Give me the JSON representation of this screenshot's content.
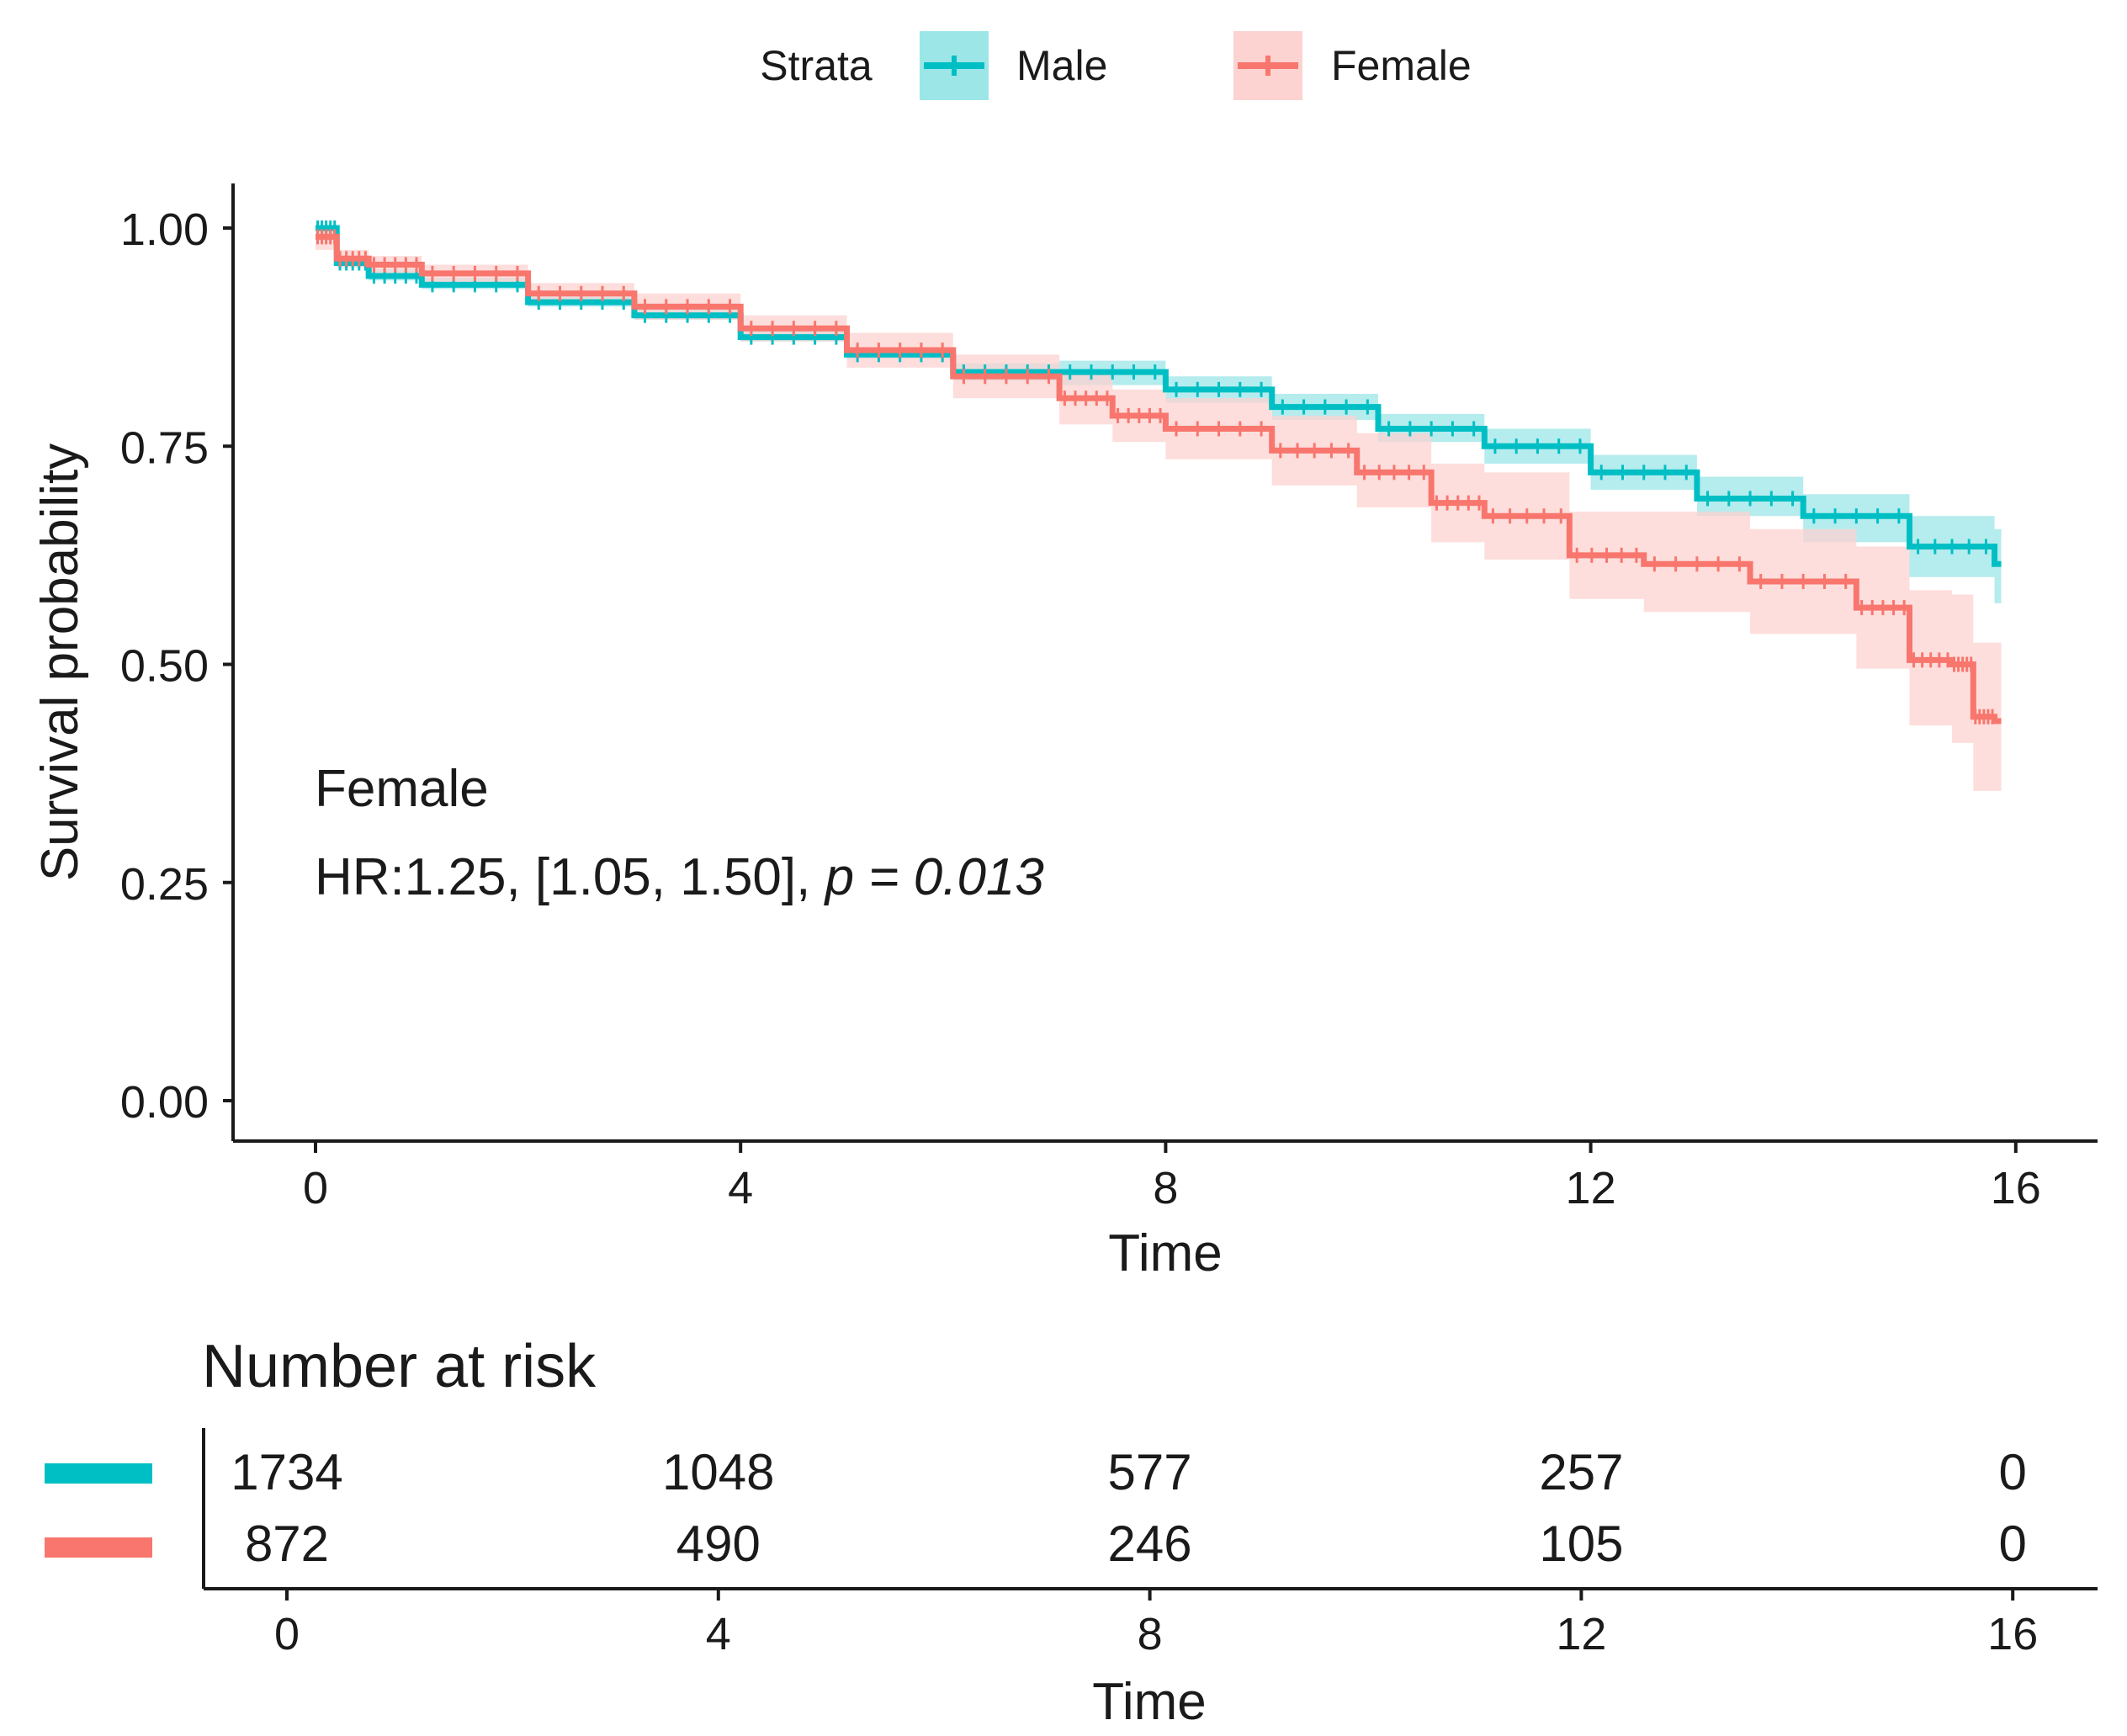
{
  "colors": {
    "male": "#00BFC4",
    "male_band": "#9CE6E8",
    "female": "#F8766D",
    "female_band": "#FCD3D0",
    "axis": "#1a1a1a"
  },
  "legend": {
    "title": "Strata",
    "entries": [
      {
        "label": "Male",
        "color": "#00BFC4",
        "band": "#9CE6E8"
      },
      {
        "label": "Female",
        "color": "#F8766D",
        "band": "#FCD3D0"
      }
    ]
  },
  "annotation": {
    "line1": "Female",
    "hr_text": "HR:1.25, [1.05, 1.50], ",
    "p_label": "p",
    "p_value": " = 0.013"
  },
  "risk_table": {
    "title": "Number at risk",
    "xlabel": "Time",
    "times": [
      0,
      4,
      8,
      12,
      16
    ],
    "rows": [
      {
        "name": "Male",
        "color": "#00BFC4",
        "values": [
          "1734",
          "1048",
          "577",
          "257",
          "0"
        ]
      },
      {
        "name": "Female",
        "color": "#F8766D",
        "values": [
          "872",
          "490",
          "246",
          "105",
          "0"
        ]
      }
    ]
  },
  "chart_data": {
    "type": "line",
    "title": "",
    "xlabel": "Time",
    "ylabel": "Survival probability",
    "xlim": [
      -0.8,
      16.8
    ],
    "ylim": [
      -0.05,
      1.05
    ],
    "xticks": [
      0,
      4,
      8,
      12,
      16
    ],
    "yticks": [
      0.0,
      0.25,
      0.5,
      0.75,
      1.0
    ],
    "ytick_labels": [
      "0.00",
      "0.25",
      "0.50",
      "0.75",
      "1.00"
    ],
    "xtick_labels": [
      "0",
      "4",
      "8",
      "12",
      "16"
    ],
    "series": [
      {
        "name": "Male",
        "x": [
          0,
          0.2,
          0.5,
          1,
          2,
          3,
          4,
          5,
          6,
          7,
          8,
          9,
          10,
          11,
          12,
          13,
          14,
          15,
          15.8
        ],
        "values": [
          1.0,
          0.96,
          0.945,
          0.935,
          0.915,
          0.9,
          0.875,
          0.855,
          0.835,
          0.835,
          0.815,
          0.795,
          0.77,
          0.75,
          0.72,
          0.69,
          0.67,
          0.635,
          0.615
        ],
        "lower": [
          0.985,
          0.955,
          0.94,
          0.93,
          0.91,
          0.895,
          0.87,
          0.85,
          0.825,
          0.82,
          0.8,
          0.78,
          0.755,
          0.73,
          0.7,
          0.67,
          0.64,
          0.6,
          0.57
        ],
        "upper": [
          1.0,
          0.968,
          0.953,
          0.943,
          0.922,
          0.907,
          0.882,
          0.862,
          0.845,
          0.848,
          0.83,
          0.81,
          0.787,
          0.77,
          0.74,
          0.715,
          0.695,
          0.67,
          0.655
        ]
      },
      {
        "name": "Female",
        "x": [
          0,
          0.2,
          0.5,
          1,
          2,
          3,
          4,
          5,
          6,
          7,
          7.5,
          8,
          9,
          9.8,
          10.5,
          11,
          11.8,
          12.5,
          13.5,
          14.5,
          15,
          15.4,
          15.6,
          15.8
        ],
        "values": [
          0.99,
          0.965,
          0.958,
          0.948,
          0.925,
          0.91,
          0.885,
          0.86,
          0.83,
          0.805,
          0.785,
          0.77,
          0.745,
          0.72,
          0.685,
          0.67,
          0.625,
          0.615,
          0.595,
          0.565,
          0.505,
          0.5,
          0.44,
          0.435
        ],
        "lower": [
          0.975,
          0.955,
          0.948,
          0.938,
          0.913,
          0.895,
          0.87,
          0.84,
          0.805,
          0.775,
          0.755,
          0.735,
          0.705,
          0.68,
          0.64,
          0.62,
          0.575,
          0.56,
          0.535,
          0.495,
          0.43,
          0.41,
          0.355,
          0.355
        ],
        "upper": [
          1.0,
          0.975,
          0.968,
          0.958,
          0.937,
          0.925,
          0.9,
          0.88,
          0.855,
          0.835,
          0.815,
          0.805,
          0.785,
          0.765,
          0.73,
          0.72,
          0.675,
          0.675,
          0.655,
          0.635,
          0.585,
          0.58,
          0.525,
          0.525
        ]
      }
    ]
  }
}
